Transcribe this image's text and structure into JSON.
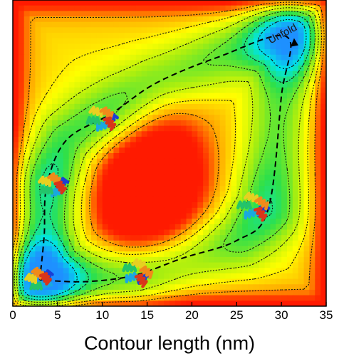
{
  "chart_data": {
    "type": "heatmap",
    "xlabel": "Contour length (nm)",
    "xlim": [
      0,
      35
    ],
    "ylim": [
      0,
      35
    ],
    "x_ticks": [
      0,
      5,
      10,
      15,
      20,
      25,
      30,
      35
    ],
    "colorscale": [
      "#1e90ff",
      "#00e5e5",
      "#2ee04a",
      "#a8ee10",
      "#ffff00",
      "#ffa500",
      "#ff1a00"
    ],
    "minima": [
      {
        "x": 3.0,
        "y": 3.0,
        "depth": 1.0
      },
      {
        "x": 31.0,
        "y": 30.8,
        "depth": 0.75
      },
      {
        "x": 3.8,
        "y": 13.8,
        "depth": 0.3
      },
      {
        "x": 28.5,
        "y": 11.0,
        "depth": 0.2
      },
      {
        "x": 13.5,
        "y": 3.5,
        "depth": 0.25
      },
      {
        "x": 11.0,
        "y": 22.0,
        "depth": 0.2
      }
    ],
    "maxima": [
      {
        "x": 14.0,
        "y": 12.0,
        "height": 1.0
      },
      {
        "x": 17.0,
        "y": 16.0,
        "height": 0.6
      }
    ],
    "pathway": [
      [
        3.0,
        3.0
      ],
      [
        3.5,
        8.0
      ],
      [
        3.8,
        13.8
      ],
      [
        6.0,
        19.0
      ],
      [
        11.0,
        22.0
      ],
      [
        16.0,
        25.5
      ],
      [
        23.0,
        28.5
      ],
      [
        30.6,
        30.8
      ],
      [
        30.0,
        24.0
      ],
      [
        28.5,
        11.0
      ],
      [
        25.0,
        7.5
      ],
      [
        19.0,
        5.5
      ],
      [
        13.5,
        3.5
      ],
      [
        8.0,
        2.8
      ],
      [
        3.0,
        3.0
      ]
    ],
    "contour_levels": [
      0.15,
      0.28,
      0.42,
      0.56,
      0.7,
      0.84
    ],
    "annotations": [
      {
        "text": "Unfold",
        "x": 30.3,
        "y": 30.8,
        "rotate": -28
      }
    ],
    "grid": false
  }
}
